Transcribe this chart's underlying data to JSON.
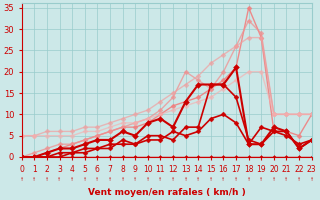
{
  "xlabel": "Vent moyen/en rafales ( km/h )",
  "bg_color": "#cce8e8",
  "grid_color": "#99cccc",
  "text_color": "#cc0000",
  "xlim": [
    0,
    23
  ],
  "ylim": [
    0,
    36
  ],
  "yticks": [
    0,
    5,
    10,
    15,
    20,
    25,
    30,
    35
  ],
  "xticks": [
    0,
    1,
    2,
    3,
    4,
    5,
    6,
    7,
    8,
    9,
    10,
    11,
    12,
    13,
    14,
    15,
    16,
    17,
    18,
    19,
    20,
    21,
    22,
    23
  ],
  "lines": [
    {
      "comment": "top light pink - nearly straight diagonal, peak ~35 at x=18",
      "x": [
        0,
        1,
        2,
        3,
        4,
        5,
        6,
        7,
        8,
        9,
        10,
        11,
        12,
        13,
        14,
        15,
        16,
        17,
        18,
        19,
        20,
        21,
        22,
        23
      ],
      "y": [
        0,
        0,
        1,
        2,
        3,
        4,
        5,
        6,
        7,
        7,
        8,
        10,
        12,
        13,
        14,
        16,
        18,
        21,
        35,
        28,
        6,
        6,
        5,
        10
      ],
      "color": "#f08080",
      "lw": 1.0,
      "ms": 2.5,
      "alpha": 0.9
    },
    {
      "comment": "second light pink diagonal - smoother slope",
      "x": [
        0,
        1,
        2,
        3,
        4,
        5,
        6,
        7,
        8,
        9,
        10,
        11,
        12,
        13,
        14,
        15,
        16,
        17,
        18,
        19,
        20,
        21,
        22,
        23
      ],
      "y": [
        0,
        1,
        2,
        3,
        3,
        4,
        5,
        6,
        7,
        8,
        9,
        11,
        14,
        20,
        18,
        16,
        20,
        26,
        32,
        29,
        10,
        10,
        10,
        10
      ],
      "color": "#f09090",
      "lw": 1.0,
      "ms": 2.5,
      "alpha": 0.75
    },
    {
      "comment": "third light pink - wide fan bottom",
      "x": [
        0,
        1,
        2,
        3,
        4,
        5,
        6,
        7,
        8,
        9,
        10,
        11,
        12,
        13,
        14,
        15,
        16,
        17,
        18,
        19,
        20,
        21,
        22,
        23
      ],
      "y": [
        5,
        5,
        6,
        6,
        6,
        7,
        7,
        8,
        9,
        10,
        11,
        13,
        15,
        17,
        19,
        22,
        24,
        26,
        28,
        28,
        10,
        10,
        10,
        10
      ],
      "color": "#f0a0a0",
      "lw": 1.0,
      "ms": 2.5,
      "alpha": 0.7
    },
    {
      "comment": "fourth light pink baseline",
      "x": [
        0,
        1,
        2,
        3,
        4,
        5,
        6,
        7,
        8,
        9,
        10,
        11,
        12,
        13,
        14,
        15,
        16,
        17,
        18,
        19,
        20,
        21,
        22,
        23
      ],
      "y": [
        5,
        5,
        5,
        5,
        5,
        6,
        6,
        7,
        8,
        8,
        9,
        10,
        11,
        12,
        13,
        14,
        16,
        18,
        20,
        20,
        10,
        10,
        10,
        10
      ],
      "color": "#f5b0b0",
      "lw": 1.0,
      "ms": 2.5,
      "alpha": 0.65
    },
    {
      "comment": "dark red line 1 - rises steeply around x=13-17, peak ~21",
      "x": [
        0,
        1,
        2,
        3,
        4,
        5,
        6,
        7,
        8,
        9,
        10,
        11,
        12,
        13,
        14,
        15,
        16,
        17,
        18,
        19,
        20,
        21,
        22,
        23
      ],
      "y": [
        0,
        0,
        1,
        2,
        2,
        3,
        4,
        4,
        6,
        5,
        8,
        9,
        7,
        13,
        17,
        17,
        17,
        21,
        3,
        3,
        7,
        6,
        2,
        4
      ],
      "color": "#cc0000",
      "lw": 1.5,
      "ms": 3.0,
      "alpha": 1.0
    },
    {
      "comment": "dark red line 2 - smaller values",
      "x": [
        0,
        1,
        2,
        3,
        4,
        5,
        6,
        7,
        8,
        9,
        10,
        11,
        12,
        13,
        14,
        15,
        16,
        17,
        18,
        19,
        20,
        21,
        22,
        23
      ],
      "y": [
        0,
        0,
        0,
        1,
        1,
        2,
        2,
        2,
        4,
        3,
        5,
        5,
        4,
        7,
        7,
        17,
        17,
        14,
        4,
        3,
        6,
        6,
        2,
        4
      ],
      "color": "#cc0000",
      "lw": 1.2,
      "ms": 2.5,
      "alpha": 1.0
    },
    {
      "comment": "dark red line 3 - flat near 0",
      "x": [
        0,
        1,
        2,
        3,
        4,
        5,
        6,
        7,
        8,
        9,
        10,
        11,
        12,
        13,
        14,
        15,
        16,
        17,
        18,
        19,
        20,
        21,
        22,
        23
      ],
      "y": [
        0,
        0,
        0,
        0,
        1,
        1,
        2,
        3,
        3,
        3,
        4,
        4,
        6,
        5,
        6,
        9,
        10,
        8,
        3,
        7,
        6,
        5,
        3,
        4
      ],
      "color": "#cc0000",
      "lw": 1.2,
      "ms": 2.5,
      "alpha": 1.0
    },
    {
      "comment": "flat zero line",
      "x": [
        0,
        1,
        2,
        3,
        4,
        5,
        6,
        7,
        8,
        9,
        10,
        11,
        12,
        13,
        14,
        15,
        16,
        17,
        18,
        19,
        20,
        21,
        22,
        23
      ],
      "y": [
        0,
        0,
        0,
        0,
        0,
        0,
        0,
        0,
        0,
        0,
        0,
        0,
        0,
        0,
        0,
        0,
        0,
        0,
        0,
        0,
        0,
        0,
        0,
        0
      ],
      "color": "#cc0000",
      "lw": 1.0,
      "ms": 2.0,
      "alpha": 1.0
    }
  ],
  "arrow_ticks": [
    0,
    1,
    2,
    3,
    4,
    5,
    6,
    7,
    8,
    9,
    10,
    11,
    12,
    13,
    14,
    15,
    16,
    17,
    18,
    19,
    20,
    21,
    22,
    23
  ]
}
